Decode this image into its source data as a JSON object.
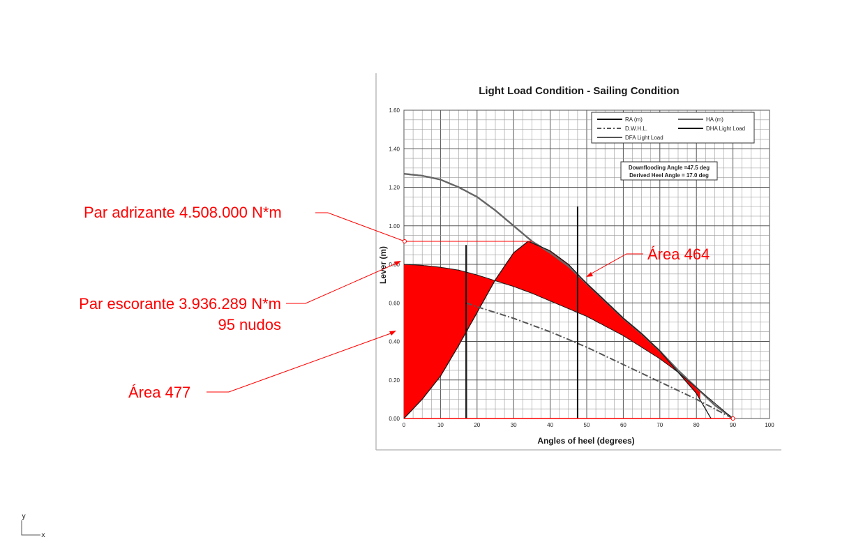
{
  "chart_data": {
    "type": "line",
    "title": "Light Load Condition - Sailing Condition",
    "xlabel": "Angles of heel (degrees)",
    "ylabel": "Lever (m)",
    "xlim": [
      0,
      100
    ],
    "ylim": [
      0,
      1.6
    ],
    "x_ticks": [
      "0",
      "10",
      "20",
      "30",
      "40",
      "50",
      "60",
      "70",
      "80",
      "90",
      "100"
    ],
    "y_ticks": [
      "0.00",
      "0.20",
      "0.40",
      "0.60",
      "0.80",
      "1.00",
      "1.20",
      "1.40",
      "1.60"
    ],
    "grid": true,
    "legend_position": "top-right",
    "legend": [
      "RA (m)",
      "HA (m)",
      "D.W.H.L.",
      "DHA Light Load",
      "DFA Light Load"
    ],
    "notes": [
      "Downflooding Angle =47.5 deg",
      "Derived Heel Angle = 17.0 deg"
    ],
    "series": [
      {
        "name": "RA (m)",
        "x": [
          0,
          5,
          10,
          15,
          20,
          25,
          30,
          34,
          40,
          45,
          50,
          55,
          60,
          65,
          70,
          75,
          80,
          84
        ],
        "y": [
          0,
          0.1,
          0.22,
          0.38,
          0.55,
          0.72,
          0.86,
          0.92,
          0.87,
          0.8,
          0.7,
          0.61,
          0.52,
          0.44,
          0.35,
          0.24,
          0.13,
          0
        ]
      },
      {
        "name": "HA (m)",
        "x": [
          0,
          5,
          10,
          15,
          20,
          25,
          30,
          35,
          40,
          45,
          50,
          55,
          60,
          65,
          70,
          75,
          80,
          85,
          90
        ],
        "y": [
          1.27,
          1.26,
          1.24,
          1.2,
          1.15,
          1.08,
          1.0,
          0.92,
          0.86,
          0.79,
          0.7,
          0.61,
          0.52,
          0.44,
          0.35,
          0.25,
          0.16,
          0.07,
          0
        ]
      },
      {
        "name": "D.W.H.L.",
        "x": [
          17,
          20,
          30,
          40,
          50,
          60,
          70,
          80,
          90
        ],
        "y": [
          0.6,
          0.58,
          0.52,
          0.45,
          0.37,
          0.28,
          0.19,
          0.1,
          0
        ]
      },
      {
        "name": "DHA Light Load",
        "x": [
          17,
          17
        ],
        "y": [
          0,
          0.9
        ]
      },
      {
        "name": "DFA Light Load",
        "x": [
          47.5,
          47.5
        ],
        "y": [
          0,
          1.1
        ]
      },
      {
        "name": "",
        "x": [
          0,
          5,
          10,
          15,
          20,
          25,
          30,
          35,
          40,
          45,
          50,
          55,
          60,
          65,
          70,
          75,
          80,
          85,
          90
        ],
        "y": [
          0.8,
          0.795,
          0.785,
          0.77,
          0.745,
          0.715,
          0.685,
          0.65,
          0.61,
          0.57,
          0.53,
          0.48,
          0.43,
          0.37,
          0.31,
          0.24,
          0.16,
          0.08,
          0
        ]
      }
    ],
    "shaded_areas": [
      {
        "label": "Área 477",
        "between": [
          "",
          "RA (m)"
        ],
        "x_range": [
          0,
          22
        ]
      },
      {
        "label": "Área 464",
        "between": [
          "RA (m)",
          ""
        ],
        "x_range": [
          22,
          81
        ]
      }
    ]
  },
  "annotations": {
    "righting": "Par adrizante 4.508.000 N*m",
    "heeling": "Par escorante 3.936.289 N*m",
    "heeling_speed": "95 nudos",
    "area_left": "Área 477",
    "area_right": "Área 464"
  },
  "axis_indicator": {
    "y": "y",
    "x": "x"
  },
  "colors": {
    "highlight": "#ff0000",
    "curve": "#555555",
    "line": "#222222",
    "grid": "#9a9a9a"
  }
}
